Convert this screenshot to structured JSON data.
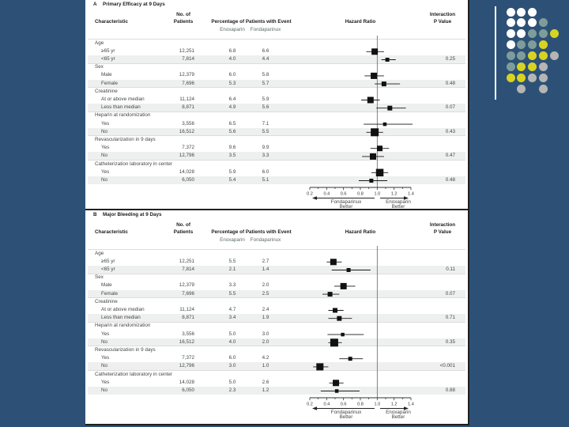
{
  "slide": {
    "background_color": "#2d5176",
    "figure_background": "#ffffff",
    "stripe_color": "#eef0ef",
    "ink_color": "#111111"
  },
  "decoration": {
    "line_color": "#ffffff",
    "colors": {
      "W": "#ffffff",
      "T": "#7e9d9a",
      "Y": "#d8d321",
      "G": "#b5b5b5"
    },
    "dots": [
      [
        0,
        0,
        "W"
      ],
      [
        1,
        0,
        "W"
      ],
      [
        2,
        0,
        "W"
      ],
      [
        0,
        1,
        "W"
      ],
      [
        1,
        1,
        "W"
      ],
      [
        2,
        1,
        "W"
      ],
      [
        3,
        1,
        "T"
      ],
      [
        0,
        2,
        "W"
      ],
      [
        1,
        2,
        "W"
      ],
      [
        2,
        2,
        "T"
      ],
      [
        3,
        2,
        "T"
      ],
      [
        4,
        2,
        "Y"
      ],
      [
        0,
        3,
        "W"
      ],
      [
        1,
        3,
        "T"
      ],
      [
        2,
        3,
        "T"
      ],
      [
        3,
        3,
        "Y"
      ],
      [
        0,
        4,
        "T"
      ],
      [
        1,
        4,
        "T"
      ],
      [
        2,
        4,
        "Y"
      ],
      [
        3,
        4,
        "Y"
      ],
      [
        4,
        4,
        "G"
      ],
      [
        0,
        5,
        "T"
      ],
      [
        1,
        5,
        "Y"
      ],
      [
        2,
        5,
        "Y"
      ],
      [
        3,
        5,
        "G"
      ],
      [
        0,
        6,
        "Y"
      ],
      [
        1,
        6,
        "Y"
      ],
      [
        2,
        6,
        "G"
      ],
      [
        3,
        6,
        "G"
      ],
      [
        1,
        7,
        "G"
      ],
      [
        3,
        7,
        "G"
      ]
    ]
  },
  "chart_data": [
    {
      "type": "scatter",
      "variant": "forest-plot",
      "panel_label": "A",
      "title": "Primary Efficacy at 9 Days",
      "columns": {
        "characteristic": "Characteristic",
        "patients_line1": "No. of",
        "patients_line2": "Patients",
        "pct_header": "Percentage of Patients with Event",
        "pct_sub": [
          "Enoxaparin",
          "Fondaparinux"
        ],
        "hr_header": "Hazard Ratio",
        "p_line1": "Interaction",
        "p_line2": "P Value"
      },
      "xlim": [
        0.2,
        1.4
      ],
      "x_ticks": [
        "0.2",
        "0.4",
        "0.6",
        "0.8",
        "1.0",
        "1.2",
        "1.4"
      ],
      "reference_line": 1.0,
      "left_arrow_label": [
        "Fondaparinux",
        "Better"
      ],
      "right_arrow_label": [
        "Enoxaparin",
        "Better"
      ],
      "groups": [
        {
          "name": "Age",
          "rows": [
            {
              "label": "≥65 yr",
              "patients": "12,251",
              "enoxaparin_pct": "6.8",
              "fondaparinux_pct": "6.6",
              "hr": 0.97,
              "ci": [
                0.87,
                1.08
              ],
              "weight": 8
            },
            {
              "label": "<65 yr",
              "patients": "7,814",
              "enoxaparin_pct": "4.0",
              "fondaparinux_pct": "4.4",
              "hr": 1.12,
              "ci": [
                1.05,
                1.22
              ],
              "weight": 5,
              "interaction_p": "0.25"
            }
          ]
        },
        {
          "name": "Sex",
          "rows": [
            {
              "label": "Male",
              "patients": "12,379",
              "enoxaparin_pct": "6.0",
              "fondaparinux_pct": "5.8",
              "hr": 0.96,
              "ci": [
                0.85,
                1.08
              ],
              "weight": 8
            },
            {
              "label": "Female",
              "patients": "7,696",
              "enoxaparin_pct": "5.3",
              "fondaparinux_pct": "5.7",
              "hr": 1.08,
              "ci": [
                0.97,
                1.27
              ],
              "weight": 6,
              "interaction_p": "0.48"
            }
          ]
        },
        {
          "name": "Creatinine",
          "rows": [
            {
              "label": "At or above median",
              "patients": "11,124",
              "enoxaparin_pct": "6.4",
              "fondaparinux_pct": "5.9",
              "hr": 0.92,
              "ci": [
                0.81,
                1.03
              ],
              "weight": 8
            },
            {
              "label": "Less than median",
              "patients": "8,871",
              "enoxaparin_pct": "4.9",
              "fondaparinux_pct": "5.6",
              "hr": 1.15,
              "ci": [
                0.99,
                1.34
              ],
              "weight": 6,
              "interaction_p": "0.07"
            }
          ]
        },
        {
          "name": "Heparin at randomization",
          "rows": [
            {
              "label": "Yes",
              "patients": "3,556",
              "enoxaparin_pct": "6.5",
              "fondaparinux_pct": "7.1",
              "hr": 1.09,
              "ci": [
                0.84,
                1.42
              ],
              "weight": 4.5
            },
            {
              "label": "No",
              "patients": "16,512",
              "enoxaparin_pct": "5.6",
              "fondaparinux_pct": "5.5",
              "hr": 0.97,
              "ci": [
                0.87,
                1.07
              ],
              "weight": 10,
              "interaction_p": "0.43"
            }
          ]
        },
        {
          "name": "Revascularization in 9 days",
          "rows": [
            {
              "label": "Yes",
              "patients": "7,372",
              "enoxaparin_pct": "9.6",
              "fondaparinux_pct": "9.9",
              "hr": 1.03,
              "ci": [
                0.92,
                1.14
              ],
              "weight": 7
            },
            {
              "label": "No",
              "patients": "12,796",
              "enoxaparin_pct": "3.5",
              "fondaparinux_pct": "3.3",
              "hr": 0.95,
              "ci": [
                0.82,
                1.08
              ],
              "weight": 8,
              "interaction_p": "0.47"
            }
          ]
        },
        {
          "name": "Catheterization laboratory in center",
          "rows": [
            {
              "label": "Yes",
              "patients": "14,028",
              "enoxaparin_pct": "5.9",
              "fondaparinux_pct": "6.0",
              "hr": 1.03,
              "ci": [
                0.93,
                1.13
              ],
              "weight": 9.5
            },
            {
              "label": "No",
              "patients": "6,050",
              "enoxaparin_pct": "5.4",
              "fondaparinux_pct": "5.1",
              "hr": 0.93,
              "ci": [
                0.78,
                1.12
              ],
              "weight": 5,
              "interaction_p": "0.48"
            }
          ]
        }
      ]
    },
    {
      "type": "scatter",
      "variant": "forest-plot",
      "panel_label": "B",
      "title": "Major Bleeding at 9 Days",
      "columns": {
        "characteristic": "Characteristic",
        "patients_line1": "No. of",
        "patients_line2": "Patients",
        "pct_header": "Percentage of Patients with Event",
        "pct_sub": [
          "Enoxaparin",
          "Fondaparinux"
        ],
        "hr_header": "Hazard Ratio",
        "p_line1": "Interaction",
        "p_line2": "P Value"
      },
      "xlim": [
        0.2,
        1.4
      ],
      "x_ticks": [
        "0.2",
        "0.4",
        "0.6",
        "0.8",
        "1.0",
        "1.2",
        "1.4"
      ],
      "reference_line": 1.0,
      "left_arrow_label": [
        "Fondaparinux",
        "Better"
      ],
      "right_arrow_label": [
        "Enoxaparin",
        "Better"
      ],
      "groups": [
        {
          "name": "Age",
          "rows": [
            {
              "label": "≥65 yr",
              "patients": "12,251",
              "enoxaparin_pct": "5.5",
              "fondaparinux_pct": "2.7",
              "hr": 0.48,
              "ci": [
                0.4,
                0.58
              ],
              "weight": 8
            },
            {
              "label": "<65 yr",
              "patients": "7,814",
              "enoxaparin_pct": "2.1",
              "fondaparinux_pct": "1.4",
              "hr": 0.66,
              "ci": [
                0.46,
                0.92
              ],
              "weight": 5,
              "interaction_p": "0.11"
            }
          ]
        },
        {
          "name": "Sex",
          "rows": [
            {
              "label": "Male",
              "patients": "12,379",
              "enoxaparin_pct": "3.3",
              "fondaparinux_pct": "2.0",
              "hr": 0.6,
              "ci": [
                0.49,
                0.74
              ],
              "weight": 8
            },
            {
              "label": "Female",
              "patients": "7,696",
              "enoxaparin_pct": "5.5",
              "fondaparinux_pct": "2.5",
              "hr": 0.44,
              "ci": [
                0.35,
                0.55
              ],
              "weight": 6,
              "interaction_p": "0.07"
            }
          ]
        },
        {
          "name": "Creatinine",
          "rows": [
            {
              "label": "At or above median",
              "patients": "11,124",
              "enoxaparin_pct": "4.7",
              "fondaparinux_pct": "2.4",
              "hr": 0.5,
              "ci": [
                0.42,
                0.6
              ],
              "weight": 6
            },
            {
              "label": "Less than median",
              "patients": "8,871",
              "enoxaparin_pct": "3.4",
              "fondaparinux_pct": "1.9",
              "hr": 0.55,
              "ci": [
                0.42,
                0.7
              ],
              "weight": 6,
              "interaction_p": "0.71"
            }
          ]
        },
        {
          "name": "Heparin at randomization",
          "rows": [
            {
              "label": "Yes",
              "patients": "3,556",
              "enoxaparin_pct": "5.0",
              "fondaparinux_pct": "3.0",
              "hr": 0.59,
              "ci": [
                0.41,
                0.84
              ],
              "weight": 4.5
            },
            {
              "label": "No",
              "patients": "16,512",
              "enoxaparin_pct": "4.0",
              "fondaparinux_pct": "2.0",
              "hr": 0.49,
              "ci": [
                0.42,
                0.58
              ],
              "weight": 10,
              "interaction_p": "0.35"
            }
          ]
        },
        {
          "name": "Revascularization in 9 days",
          "rows": [
            {
              "label": "Yes",
              "patients": "7,372",
              "enoxaparin_pct": "6.0",
              "fondaparinux_pct": "4.2",
              "hr": 0.68,
              "ci": [
                0.55,
                0.83
              ],
              "weight": 5
            },
            {
              "label": "No",
              "patients": "12,796",
              "enoxaparin_pct": "3.0",
              "fondaparinux_pct": "1.0",
              "hr": 0.32,
              "ci": [
                0.24,
                0.42
              ],
              "weight": 9,
              "interaction_p": "<0.001"
            }
          ]
        },
        {
          "name": "Catheterization laboratory in center",
          "rows": [
            {
              "label": "Yes",
              "patients": "14,028",
              "enoxaparin_pct": "5.0",
              "fondaparinux_pct": "2.6",
              "hr": 0.51,
              "ci": [
                0.43,
                0.6
              ],
              "weight": 8
            },
            {
              "label": "No",
              "patients": "6,050",
              "enoxaparin_pct": "2.3",
              "fondaparinux_pct": "1.2",
              "hr": 0.52,
              "ci": [
                0.33,
                0.79
              ],
              "weight": 4.5,
              "interaction_p": "0.88"
            }
          ]
        }
      ]
    }
  ]
}
